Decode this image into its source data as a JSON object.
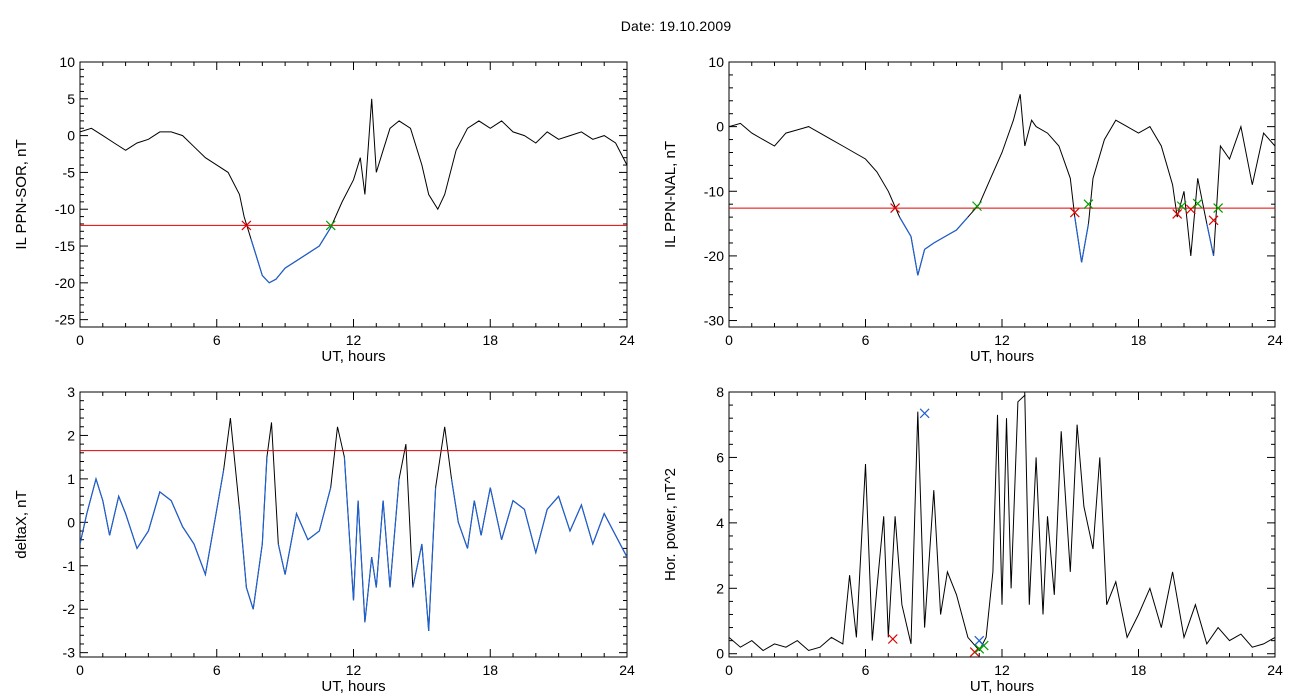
{
  "page": {
    "title": "Date:   19.10.2009"
  },
  "colors": {
    "trace": "#000000",
    "below_threshold": "#1f5fd0",
    "threshold": "#e00000",
    "start_marker": "#e00000",
    "end_marker": "#00a000",
    "peak_marker": "#1f5fd0"
  },
  "chart_data": [
    {
      "id": "ppn-sor",
      "type": "line",
      "xlabel": "UT, hours",
      "ylabel": "IL PPN-SOR, nT",
      "xlim": [
        0,
        24
      ],
      "ylim": [
        -26,
        10
      ],
      "xticks": [
        0,
        6,
        12,
        18,
        24
      ],
      "yticks": [
        10,
        5,
        0,
        -5,
        -10,
        -15,
        -20,
        -25
      ],
      "threshold": -12.2,
      "series": [
        {
          "x": [
            0,
            0.5,
            1,
            1.5,
            2,
            2.5,
            3,
            3.5,
            4,
            4.5,
            5,
            5.5,
            6,
            6.5,
            7,
            7.2,
            7.5,
            7.7,
            8,
            8.3,
            8.6,
            9,
            9.5,
            10,
            10.5,
            11,
            11.5,
            12,
            12.3,
            12.5,
            12.8,
            13,
            13.3,
            13.6,
            14,
            14.5,
            15,
            15.3,
            15.7,
            16,
            16.5,
            17,
            17.5,
            18,
            18.5,
            19,
            19.5,
            20,
            20.5,
            21,
            21.5,
            22,
            22.5,
            23,
            23.5,
            24
          ],
          "y": [
            0.5,
            1,
            0,
            -1,
            -2,
            -1,
            -0.5,
            0.5,
            0.5,
            0,
            -1.5,
            -3,
            -4,
            -5,
            -8,
            -11,
            -14,
            -16,
            -19,
            -20,
            -19.5,
            -18,
            -17,
            -16,
            -15,
            -12.5,
            -9,
            -6,
            -3,
            -8,
            5,
            -5,
            -2,
            1,
            2,
            1,
            -4,
            -8,
            -10,
            -8,
            -2,
            1,
            2,
            1,
            2,
            0.5,
            0,
            -1,
            0.5,
            -0.5,
            0,
            0.5,
            -0.5,
            0,
            -1,
            -4
          ]
        }
      ],
      "start_markers": [
        [
          7.3,
          -12.2
        ]
      ],
      "end_markers": [
        [
          11.0,
          -12.2
        ]
      ],
      "peak_markers": []
    },
    {
      "id": "ppn-nal",
      "type": "line",
      "xlabel": "UT, hours",
      "ylabel": "IL PPN-NAL, nT",
      "xlim": [
        0,
        24
      ],
      "ylim": [
        -31,
        10
      ],
      "xticks": [
        0,
        6,
        12,
        18,
        24
      ],
      "yticks": [
        10,
        0,
        -10,
        -20,
        -30
      ],
      "threshold": -12.6,
      "series": [
        {
          "x": [
            0,
            0.5,
            1,
            1.5,
            2,
            2.5,
            3,
            3.5,
            4,
            4.5,
            5,
            5.5,
            6,
            6.5,
            7,
            7.5,
            8,
            8.3,
            8.6,
            9,
            9.5,
            10,
            10.5,
            11,
            11.5,
            12,
            12.5,
            12.8,
            13,
            13.3,
            13.5,
            14,
            14.5,
            15,
            15.2,
            15.5,
            15.8,
            16,
            16.5,
            17,
            17.5,
            18,
            18.5,
            19,
            19.5,
            19.7,
            20,
            20.3,
            20.6,
            21,
            21.3,
            21.6,
            22,
            22.5,
            23,
            23.5,
            24
          ],
          "y": [
            0,
            0.5,
            -1,
            -2,
            -3,
            -1,
            -0.5,
            0,
            -1,
            -2,
            -3,
            -4,
            -5,
            -7,
            -10,
            -14,
            -17,
            -23,
            -19,
            -18,
            -17,
            -16,
            -14,
            -12,
            -8,
            -4,
            1,
            5,
            -3,
            1,
            0,
            -1,
            -3,
            -8,
            -14,
            -21,
            -15,
            -8,
            -2,
            1,
            0,
            -1,
            0,
            -3,
            -9,
            -14,
            -10,
            -20,
            -8,
            -15,
            -20,
            -3,
            -5,
            0,
            -9,
            -1,
            -3
          ]
        }
      ],
      "start_markers": [
        [
          7.3,
          -12.6
        ],
        [
          15.2,
          -13.3
        ],
        [
          19.7,
          -13.5
        ],
        [
          20.3,
          -12.8
        ],
        [
          21.3,
          -14.5
        ]
      ],
      "end_markers": [
        [
          10.9,
          -12.3
        ],
        [
          15.8,
          -12.0
        ],
        [
          19.9,
          -12.3
        ],
        [
          20.6,
          -11.9
        ],
        [
          21.5,
          -12.6
        ]
      ],
      "peak_markers": []
    },
    {
      "id": "deltax",
      "type": "line",
      "xlabel": "UT, hours",
      "ylabel": "deltaX, nT",
      "xlim": [
        0,
        24
      ],
      "ylim": [
        -3.1,
        3
      ],
      "xticks": [
        0,
        6,
        12,
        18,
        24
      ],
      "yticks": [
        3,
        2,
        1,
        0,
        -1,
        -2,
        -3
      ],
      "threshold": 1.65,
      "series": [
        {
          "x": [
            0,
            0.3,
            0.7,
            1,
            1.3,
            1.7,
            2,
            2.5,
            3,
            3.5,
            4,
            4.5,
            5,
            5.5,
            6,
            6.3,
            6.6,
            7,
            7.3,
            7.6,
            8,
            8.2,
            8.4,
            8.7,
            9,
            9.5,
            10,
            10.5,
            11,
            11.3,
            11.6,
            12,
            12.2,
            12.5,
            12.8,
            13,
            13.3,
            13.6,
            14,
            14.3,
            14.6,
            15,
            15.3,
            15.6,
            16,
            16.3,
            16.6,
            17,
            17.3,
            17.6,
            18,
            18.5,
            19,
            19.5,
            20,
            20.5,
            21,
            21.5,
            22,
            22.5,
            23,
            23.5,
            24
          ],
          "y": [
            -0.5,
            0.2,
            1,
            0.5,
            -0.3,
            0.6,
            0.2,
            -0.6,
            -0.2,
            0.7,
            0.5,
            -0.1,
            -0.5,
            -1.2,
            0.3,
            1.2,
            2.4,
            0.3,
            -1.5,
            -2,
            -0.5,
            1.5,
            2.3,
            -0.5,
            -1.2,
            0.2,
            -0.4,
            -0.2,
            0.8,
            2.2,
            1.5,
            -1.8,
            0.5,
            -2.3,
            -0.8,
            -1.5,
            0.5,
            -1.5,
            1,
            1.8,
            -1.5,
            -0.5,
            -2.5,
            0.8,
            2.2,
            1,
            0,
            -0.6,
            0.5,
            -0.3,
            0.8,
            -0.4,
            0.5,
            0.3,
            -0.7,
            0.3,
            0.6,
            -0.2,
            0.4,
            -0.5,
            0.2,
            -0.3,
            -0.8
          ]
        }
      ],
      "start_markers": [],
      "end_markers": [],
      "peak_markers": []
    },
    {
      "id": "hor-power",
      "type": "line",
      "xlabel": "UT, hours",
      "ylabel": "Hor. power, nT^2",
      "xlim": [
        0,
        24
      ],
      "ylim": [
        -0.1,
        8
      ],
      "xticks": [
        0,
        6,
        12,
        18,
        24
      ],
      "yticks": [
        0,
        2,
        4,
        6,
        8
      ],
      "threshold": null,
      "series": [
        {
          "x": [
            0,
            0.5,
            1,
            1.5,
            2,
            2.5,
            3,
            3.5,
            4,
            4.5,
            5,
            5.3,
            5.6,
            6,
            6.3,
            6.5,
            6.8,
            7,
            7.3,
            7.6,
            8,
            8.3,
            8.6,
            9,
            9.3,
            9.6,
            10,
            10.5,
            11,
            11.3,
            11.6,
            11.8,
            12,
            12.2,
            12.4,
            12.7,
            13,
            13.2,
            13.5,
            13.8,
            14,
            14.3,
            14.6,
            15,
            15.3,
            15.6,
            16,
            16.3,
            16.6,
            17,
            17.5,
            18,
            18.5,
            19,
            19.5,
            20,
            20.5,
            21,
            21.5,
            22,
            22.5,
            23,
            23.5,
            24
          ],
          "y": [
            0.5,
            0.2,
            0.4,
            0.1,
            0.3,
            0.2,
            0.4,
            0.1,
            0.2,
            0.5,
            0.3,
            2.4,
            0.5,
            5.8,
            0.4,
            2,
            4.2,
            0.5,
            4.2,
            1.5,
            0.3,
            7.4,
            0.8,
            5,
            1.2,
            2.5,
            1.8,
            0.5,
            0.1,
            0.5,
            2.5,
            7.3,
            1.5,
            7.2,
            2,
            7.7,
            7.9,
            1.5,
            6,
            1.2,
            4.2,
            1.8,
            6.8,
            2.5,
            7,
            4.5,
            3.2,
            6,
            1.5,
            2.2,
            0.5,
            1.2,
            2,
            0.8,
            2.5,
            0.5,
            1.5,
            0.3,
            0.8,
            0.4,
            0.6,
            0.2,
            0.3,
            0.5
          ]
        }
      ],
      "start_markers": [
        [
          7.2,
          0.45
        ],
        [
          10.8,
          0.05
        ]
      ],
      "end_markers": [
        [
          11.0,
          0.15
        ],
        [
          11.2,
          0.25
        ]
      ],
      "peak_markers": [
        [
          8.6,
          7.35
        ],
        [
          11.0,
          0.4
        ]
      ]
    }
  ]
}
